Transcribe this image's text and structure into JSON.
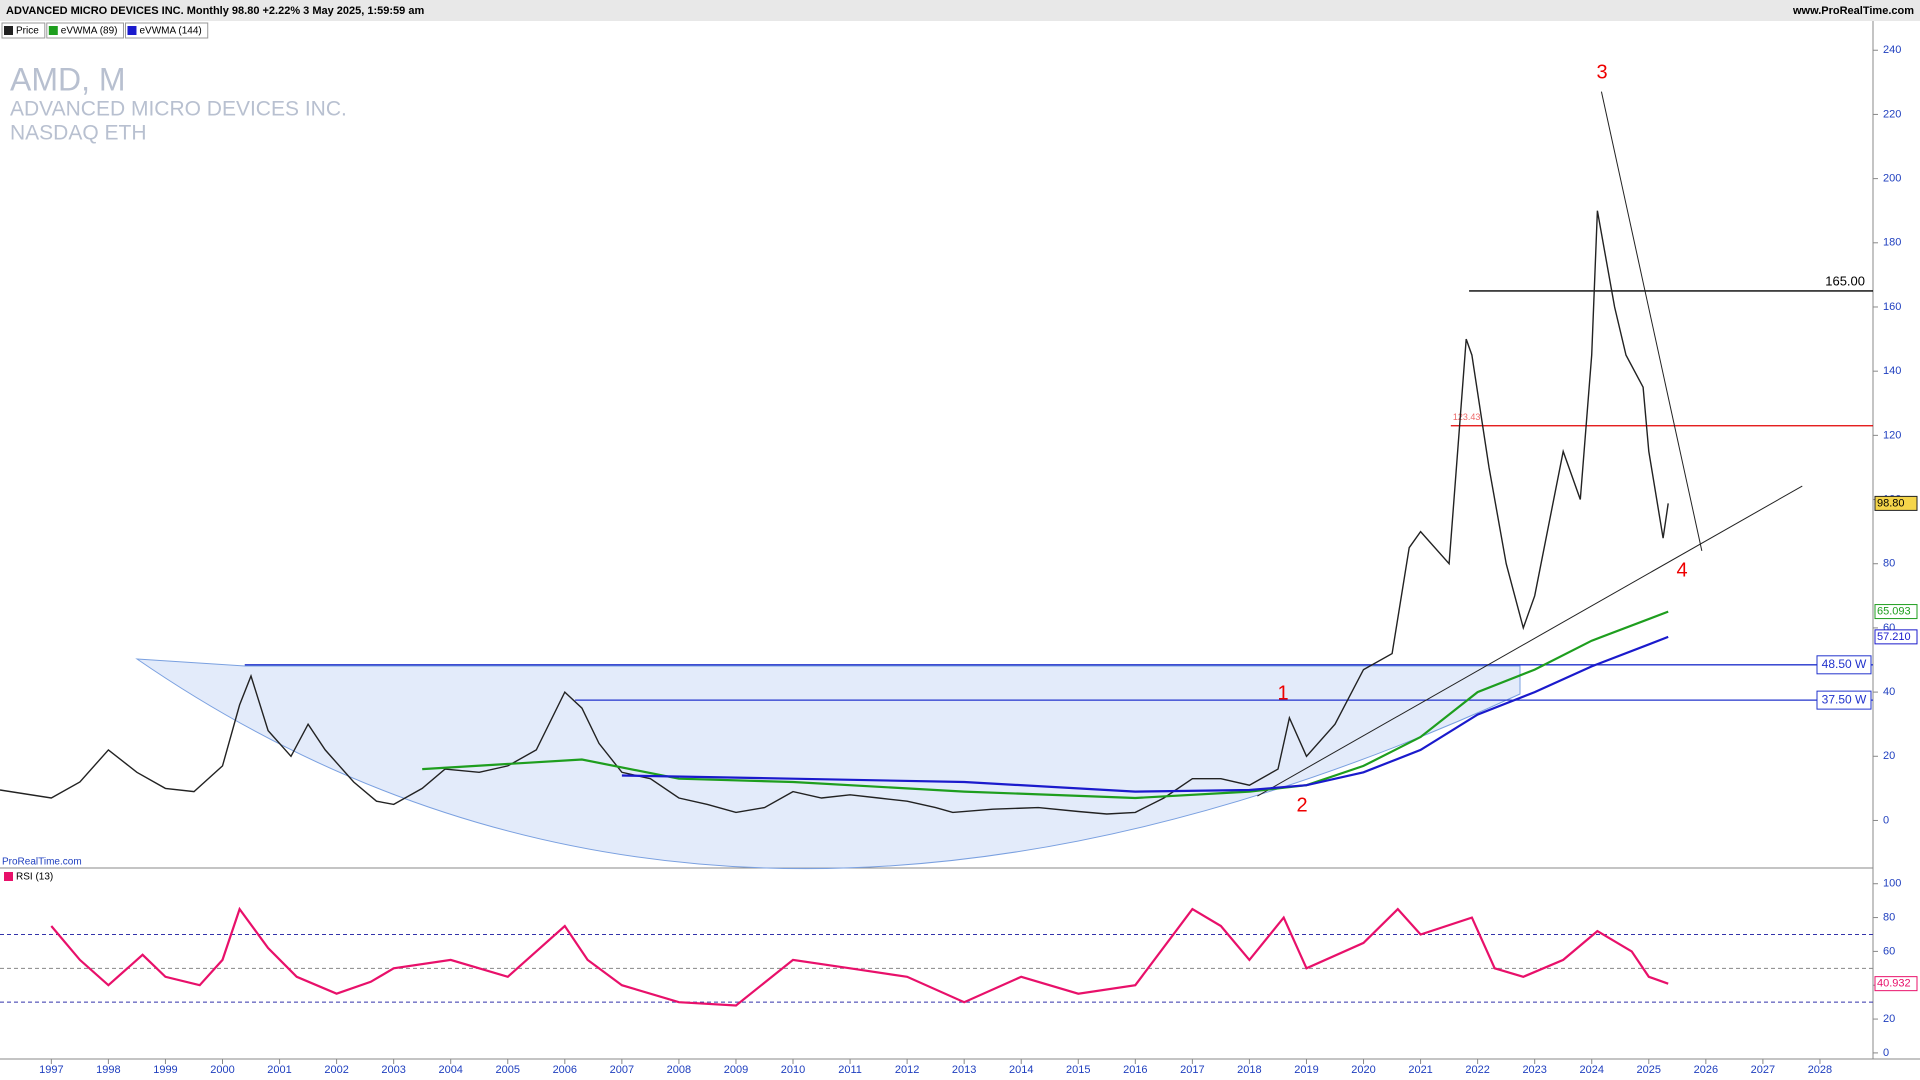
{
  "header": {
    "title": "ADVANCED MICRO DEVICES INC. Monthly 98.80 +2.22% 3 May 2025, 1:59:59 am",
    "site": "www.ProRealTime.com",
    "watermark": "ProRealTime.com"
  },
  "chart_data": [
    {
      "type": "line",
      "title": "AMD, M",
      "subtitle": "ADVANCED MICRO DEVICES INC.",
      "exchange": "NASDAQ ETH",
      "series": [
        {
          "name": "Price",
          "color": "#222222",
          "x": [
            1996.1,
            1997.0,
            1997.5,
            1998.0,
            1998.5,
            1999.0,
            1999.5,
            2000.0,
            2000.3,
            2000.5,
            2000.8,
            2001.2,
            2001.5,
            2001.8,
            2002.3,
            2002.7,
            2003.0,
            2003.5,
            2003.9,
            2004.5,
            2005.0,
            2005.5,
            2006.0,
            2006.3,
            2006.6,
            2007.0,
            2007.5,
            2008.0,
            2008.5,
            2009.0,
            2009.5,
            2010.0,
            2010.5,
            2011.0,
            2011.5,
            2012.0,
            2012.5,
            2012.8,
            2013.5,
            2014.3,
            2015.0,
            2015.5,
            2016.0,
            2016.5,
            2017.0,
            2017.5,
            2018.0,
            2018.5,
            2018.7,
            2019.0,
            2019.5,
            2020.0,
            2020.5,
            2020.8,
            2021.0,
            2021.5,
            2021.8,
            2021.9,
            2022.2,
            2022.5,
            2022.8,
            2023.0,
            2023.5,
            2023.8,
            2024.0,
            2024.1,
            2024.4,
            2024.6,
            2024.9,
            2025.0,
            2025.25,
            2025.34
          ],
          "values": [
            9.5,
            7,
            12,
            22,
            15,
            10,
            9,
            17,
            36,
            45,
            28,
            20,
            30,
            22,
            12,
            6,
            5,
            10,
            16,
            15,
            17,
            22,
            40,
            35,
            24,
            15,
            13,
            7,
            5,
            2.5,
            4,
            9,
            7,
            8,
            7,
            6,
            4,
            2.5,
            3.5,
            4,
            2.8,
            2.0,
            2.5,
            7,
            13,
            13,
            11,
            16,
            32,
            20,
            30,
            47,
            52,
            85,
            90,
            80,
            150,
            145,
            110,
            80,
            60,
            70,
            115,
            100,
            145,
            190,
            160,
            145,
            135,
            115,
            88,
            98.8
          ],
          "value_labels": [
            null,
            null,
            null,
            null,
            null,
            null,
            null,
            null,
            null,
            null,
            null,
            null,
            null,
            null,
            null,
            null,
            null,
            null,
            null,
            null,
            null,
            null,
            null,
            null,
            null,
            null,
            null,
            null,
            null,
            null,
            null,
            null,
            null,
            null,
            null,
            null,
            null,
            null,
            null,
            null,
            null,
            null,
            null,
            null,
            null,
            null,
            null,
            null,
            null,
            null,
            null,
            null,
            null,
            null,
            null,
            null,
            null,
            null,
            null,
            null,
            null,
            null,
            null,
            null,
            null,
            null,
            null,
            null,
            null,
            null,
            null,
            "98.80"
          ]
        },
        {
          "name": "eVWMA (89)",
          "color": "#1e9e1e",
          "x": [
            2003.5,
            2006.3,
            2008.0,
            2010.0,
            2013.0,
            2016.0,
            2018.0,
            2019.0,
            2020.0,
            2021.0,
            2022.0,
            2023.0,
            2024.0,
            2025.34
          ],
          "values": [
            16,
            19,
            13,
            12,
            9,
            7,
            9,
            11,
            17,
            26,
            40,
            47,
            56,
            65.093
          ],
          "value_labels": [
            null,
            null,
            null,
            null,
            null,
            null,
            null,
            null,
            null,
            null,
            null,
            null,
            null,
            "65.093"
          ]
        },
        {
          "name": "eVWMA (144)",
          "color": "#1a1acc",
          "x": [
            2007.0,
            2010.0,
            2013.0,
            2016.0,
            2018.0,
            2019.0,
            2020.0,
            2021.0,
            2022.0,
            2023.0,
            2024.0,
            2025.34
          ],
          "values": [
            14,
            13,
            12,
            9,
            9.5,
            11,
            15,
            22,
            33,
            40,
            48,
            57.21
          ],
          "value_labels": [
            null,
            null,
            null,
            null,
            null,
            null,
            null,
            null,
            null,
            null,
            null,
            "57.210"
          ]
        }
      ],
      "xlim": [
        1996.1,
        2028.93
      ],
      "xticks": [
        1997,
        1998,
        1999,
        2000,
        2001,
        2002,
        2003,
        2004,
        2005,
        2006,
        2007,
        2008,
        2009,
        2010,
        2011,
        2012,
        2013,
        2014,
        2015,
        2016,
        2017,
        2018,
        2019,
        2020,
        2021,
        2022,
        2023,
        2024,
        2025,
        2026,
        2027,
        2028
      ],
      "ylim": [
        -14.5,
        248.8
      ],
      "yticks": [
        0,
        20,
        40,
        60,
        80,
        100,
        120,
        140,
        160,
        180,
        200,
        220,
        240
      ],
      "levels": [
        {
          "value": 165,
          "label": "165.00",
          "color": "#000000"
        },
        {
          "value": 123,
          "label": "123.43",
          "color": "#e00000"
        },
        {
          "value": 48.5,
          "label": "48.50 W",
          "color": "#2233cc"
        },
        {
          "value": 37.5,
          "label": "37.50 W",
          "color": "#2233cc"
        }
      ],
      "trendlines": [
        {
          "x": [
            2018.14,
            2027.69
          ],
          "y": [
            7.6,
            104.2
          ]
        },
        {
          "x": [
            2024.17,
            2025.93
          ],
          "y": [
            227.1,
            84
          ]
        }
      ],
      "annotations": [
        "3",
        "1",
        "2",
        "4"
      ]
    },
    {
      "type": "line",
      "title": "RSI (13)",
      "series": [
        {
          "name": "RSI (13)",
          "color": "#e8106a",
          "x": [
            1997.0,
            1997.5,
            1998.0,
            1998.6,
            1999.0,
            1999.6,
            2000.0,
            2000.3,
            2000.8,
            2001.3,
            2002.0,
            2002.6,
            2003.0,
            2004.0,
            2005.0,
            2006.0,
            2006.4,
            2007.0,
            2008.0,
            2009.0,
            2010.0,
            2011.0,
            2012.0,
            2013.0,
            2014.0,
            2015.0,
            2016.0,
            2017.0,
            2017.5,
            2018.0,
            2018.6,
            2019.0,
            2020.0,
            2020.6,
            2021.0,
            2021.9,
            2022.3,
            2022.8,
            2023.5,
            2024.1,
            2024.7,
            2025.0,
            2025.34
          ],
          "values": [
            75,
            55,
            40,
            58,
            45,
            40,
            55,
            85,
            62,
            45,
            35,
            42,
            50,
            55,
            45,
            75,
            55,
            40,
            30,
            28,
            55,
            50,
            45,
            30,
            45,
            35,
            40,
            85,
            75,
            55,
            80,
            50,
            65,
            85,
            70,
            80,
            50,
            45,
            55,
            72,
            60,
            45,
            40.932
          ],
          "value_labels": [
            null,
            null,
            null,
            null,
            null,
            null,
            null,
            null,
            null,
            null,
            null,
            null,
            null,
            null,
            null,
            null,
            null,
            null,
            null,
            null,
            null,
            null,
            null,
            null,
            null,
            null,
            null,
            null,
            null,
            null,
            null,
            null,
            null,
            null,
            null,
            null,
            null,
            null,
            null,
            null,
            null,
            null,
            "40.932"
          ]
        }
      ],
      "ylim": [
        -3.6,
        108.7
      ],
      "yticks": [
        0,
        20,
        40,
        60,
        80,
        100
      ],
      "bands": [
        30,
        50,
        70
      ]
    }
  ]
}
